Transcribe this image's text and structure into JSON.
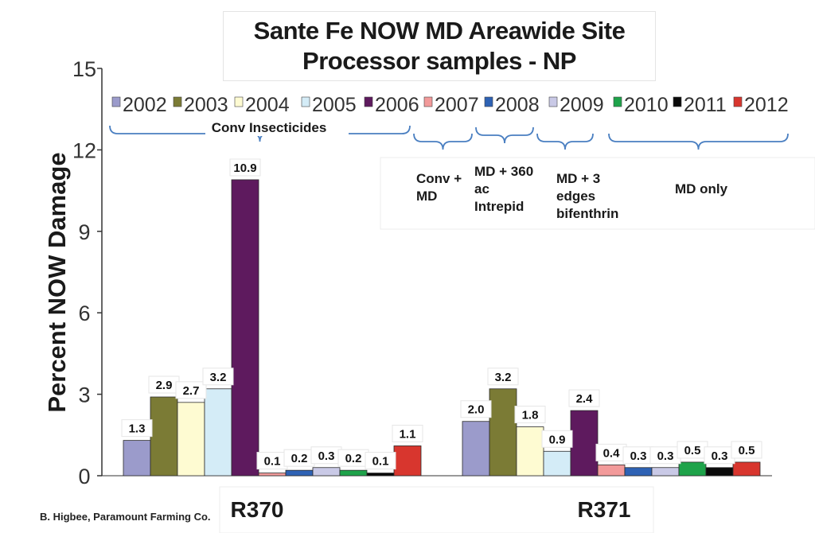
{
  "title_lines": [
    "Sante Fe NOW MD Areawide Site",
    "Processor samples - NP"
  ],
  "credit": "B. Higbee, Paramount  Farming Co.",
  "annotations": {
    "conv_insecticides": "Conv Insecticides",
    "conv_md": [
      "Conv +",
      "MD"
    ],
    "md_360": [
      "MD + 360",
      "ac",
      "Intrepid"
    ],
    "md_3edges": [
      "MD + 3",
      "edges",
      "bifenthrin"
    ],
    "md_only": "MD only"
  },
  "colors": {
    "2002": "#9b9bcb",
    "2003": "#7b7b35",
    "2004": "#fefbd2",
    "2005": "#d4ecf7",
    "2006": "#5e1a5e",
    "2007": "#f29a9a",
    "2008": "#2e62b4",
    "2009": "#c9c9e6",
    "2010": "#1ea34a",
    "2011": "#0a0a0a",
    "2012": "#d8362e"
  },
  "chart_data": {
    "type": "bar",
    "title": "Sante Fe NOW MD Areawide Site Processor samples - NP",
    "ylabel": "Percent NOW Damage",
    "xlabel": "",
    "ylim": [
      0,
      15
    ],
    "yticks": [
      0,
      3,
      6,
      9,
      12,
      15
    ],
    "legend_position": "top",
    "grid": false,
    "categories": [
      "R370",
      "R371"
    ],
    "series": [
      {
        "name": "2002",
        "values": [
          1.3,
          2.0
        ]
      },
      {
        "name": "2003",
        "values": [
          2.9,
          3.2
        ]
      },
      {
        "name": "2004",
        "values": [
          2.7,
          1.8
        ]
      },
      {
        "name": "2005",
        "values": [
          3.2,
          0.9
        ]
      },
      {
        "name": "2006",
        "values": [
          10.9,
          2.4
        ]
      },
      {
        "name": "2007",
        "values": [
          0.1,
          0.4
        ]
      },
      {
        "name": "2008",
        "values": [
          0.2,
          0.3
        ]
      },
      {
        "name": "2009",
        "values": [
          0.3,
          0.3
        ]
      },
      {
        "name": "2010",
        "values": [
          0.2,
          0.5
        ]
      },
      {
        "name": "2011",
        "values": [
          0.1,
          0.3
        ]
      },
      {
        "name": "2012",
        "values": [
          1.1,
          0.5
        ]
      }
    ]
  }
}
